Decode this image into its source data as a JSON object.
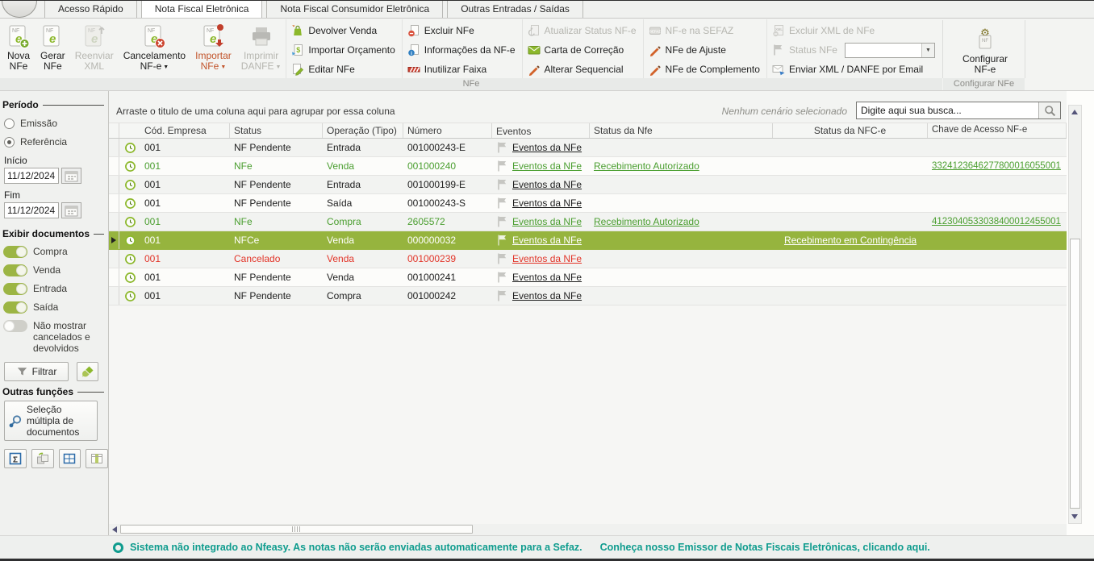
{
  "colors": {
    "selected_row_green": "#96b43e",
    "toggle_green": "#9cb544",
    "link_text_green": "#4a9e2f",
    "status_red": "#e23428",
    "orange_accent": "#c2552c",
    "teal": "#0f9c8e"
  },
  "tabs": [
    {
      "id": "acesso-rapido",
      "label": "Acesso Rápido",
      "active": false
    },
    {
      "id": "nota-fiscal-eletronica",
      "label": "Nota Fiscal Eletrônica",
      "active": true
    },
    {
      "id": "nota-fiscal-consumidor-eletronica",
      "label": "Nota Fiscal Consumidor Eletrônica",
      "active": false
    },
    {
      "id": "outras-entradas-saidas",
      "label": "Outras Entradas / Saídas",
      "active": false
    }
  ],
  "ribbon": {
    "group_nfe_label": "NFe",
    "group_config_label": "Configurar NFe",
    "big_buttons": [
      {
        "id": "nova-nfe",
        "lines": [
          "Nova",
          "NFe"
        ],
        "icon": "nf-new",
        "enabled": true,
        "dropdown": false,
        "accent": ""
      },
      {
        "id": "gerar-nfe",
        "lines": [
          "Gerar",
          "NFe"
        ],
        "icon": "nf-gen",
        "enabled": true,
        "dropdown": false,
        "accent": ""
      },
      {
        "id": "reenviar-xml",
        "lines": [
          "Reenviar",
          "XML"
        ],
        "icon": "nf-resend",
        "enabled": false,
        "dropdown": false,
        "accent": ""
      },
      {
        "id": "cancelamento-nfe",
        "lines": [
          "Cancelamento",
          "NF-e"
        ],
        "icon": "nf-cancel",
        "enabled": true,
        "dropdown": true,
        "accent": ""
      },
      {
        "id": "importar-nfe",
        "lines": [
          "Importar",
          "NFe"
        ],
        "icon": "nf-import",
        "enabled": true,
        "dropdown": true,
        "accent": "orange"
      },
      {
        "id": "imprimir-danfe",
        "lines": [
          "Imprimir",
          "DANFE"
        ],
        "icon": "printer",
        "enabled": false,
        "dropdown": true,
        "accent": ""
      }
    ],
    "small_button_columns": [
      [
        {
          "id": "devolver-venda",
          "label": "Devolver Venda",
          "icon": "bag-green",
          "enabled": true,
          "combo": false
        },
        {
          "id": "importar-orcamento",
          "label": "Importar Orçamento",
          "icon": "doc-dollar",
          "enabled": true,
          "combo": false
        },
        {
          "id": "editar-nfe",
          "label": "Editar NFe",
          "icon": "pencil-doc",
          "enabled": true,
          "combo": false
        }
      ],
      [
        {
          "id": "excluir-nfe",
          "label": "Excluir NFe",
          "icon": "doc-minus",
          "enabled": true,
          "combo": false
        },
        {
          "id": "informacoes-da-nfe",
          "label": "Informações da NF-e",
          "icon": "doc-info",
          "enabled": true,
          "combo": false
        },
        {
          "id": "inutilizar-faixa",
          "label": "Inutilizar Faixa",
          "icon": "barrier",
          "enabled": true,
          "combo": false
        }
      ],
      [
        {
          "id": "atualizar-status-nfe",
          "label": "Atualizar Status NF-e",
          "icon": "refresh-doc",
          "enabled": false,
          "combo": false
        },
        {
          "id": "carta-de-correcao",
          "label": "Carta de Correção",
          "icon": "envelope-green",
          "enabled": true,
          "combo": false
        },
        {
          "id": "alterar-sequencial",
          "label": "Alterar Sequencial",
          "icon": "pencil-orange",
          "enabled": true,
          "combo": false
        }
      ],
      [
        {
          "id": "nfe-na-sefaz",
          "label": "NF-e na SEFAZ",
          "icon": "sefaz",
          "enabled": false,
          "combo": false
        },
        {
          "id": "nfe-de-ajuste",
          "label": "NFe de Ajuste",
          "icon": "pencil-orange",
          "enabled": true,
          "combo": false
        },
        {
          "id": "nfe-de-complemento",
          "label": "NFe de Complemento",
          "icon": "pencil-orange",
          "enabled": true,
          "combo": false
        }
      ],
      [
        {
          "id": "excluir-xml-de-nfe",
          "label": "Excluir XML de NFe",
          "icon": "xml-minus",
          "enabled": false,
          "combo": false
        },
        {
          "id": "status-nfe",
          "label": "Status NFe",
          "icon": "flag-gray",
          "enabled": false,
          "combo": true
        },
        {
          "id": "enviar-xml-danfe-por-email",
          "label": "Enviar XML / DANFE por Email",
          "icon": "envelope-send",
          "enabled": true,
          "combo": false
        }
      ]
    ],
    "status_nfe_combo_value": "",
    "configurar_button": {
      "id": "configurar-nfe",
      "lines": [
        "Configurar",
        "NF-e"
      ],
      "icon": "nf-config"
    }
  },
  "sidebar": {
    "periodo": {
      "title": "Período",
      "options": [
        {
          "label": "Emissão",
          "selected": false
        },
        {
          "label": "Referência",
          "selected": true
        }
      ],
      "inicio_label": "Início",
      "inicio_value": "11/12/2024",
      "fim_label": "Fim",
      "fim_value": "11/12/2024"
    },
    "exibir": {
      "title": "Exibir documentos",
      "toggles": [
        {
          "id": "compra",
          "label": "Compra",
          "on": true
        },
        {
          "id": "venda",
          "label": "Venda",
          "on": true
        },
        {
          "id": "entrada",
          "label": "Entrada",
          "on": true
        },
        {
          "id": "saida",
          "label": "Saída",
          "on": true
        },
        {
          "id": "nao-mostrar-cancelados",
          "label": "Não mostrar cancelados e devolvidos",
          "on": false
        }
      ]
    },
    "filtrar_label": "Filtrar",
    "outras_funcoes_title": "Outras funções",
    "selecao_multipla_label": "Seleção múltipla de documentos",
    "tool_buttons": [
      {
        "id": "totalizador",
        "icon": "sum-grid"
      },
      {
        "id": "exportar-grade",
        "icon": "copy-grid"
      },
      {
        "id": "linhas-de-grade",
        "icon": "grid-lines"
      },
      {
        "id": "escolher-colunas",
        "icon": "column-chooser"
      }
    ]
  },
  "grid": {
    "group_hint": "Arraste o titulo de uma coluna aqui para agrupar por essa coluna",
    "scenario_text": "Nenhum cenário selecionado",
    "search_placeholder": "Digite aqui sua busca...",
    "columns": [
      "Cód. Empresa",
      "Status",
      "Operação (Tipo)",
      "Número",
      "Eventos",
      "Status da Nfe",
      "Status da NFC-e",
      "Chave de Acesso NF-e"
    ],
    "eventos_link_label": "Eventos da NFe",
    "rows": [
      {
        "empresa": "001",
        "status": "NF Pendente",
        "operacao": "Entrada",
        "numero": "001000243-E",
        "status_nfe": "",
        "status_nfce": "",
        "chave": "",
        "tone": "default",
        "selected": false
      },
      {
        "empresa": "001",
        "status": "NFe",
        "operacao": "Venda",
        "numero": "001000240",
        "status_nfe": "Recebimento Autorizado",
        "status_nfce": "",
        "chave": "3324123646277800016055001",
        "tone": "green",
        "selected": false
      },
      {
        "empresa": "001",
        "status": "NF Pendente",
        "operacao": "Entrada",
        "numero": "001000199-E",
        "status_nfe": "",
        "status_nfce": "",
        "chave": "",
        "tone": "default",
        "selected": false
      },
      {
        "empresa": "001",
        "status": "NF Pendente",
        "operacao": "Saída",
        "numero": "001000243-S",
        "status_nfe": "",
        "status_nfce": "",
        "chave": "",
        "tone": "default",
        "selected": false
      },
      {
        "empresa": "001",
        "status": "NFe",
        "operacao": "Compra",
        "numero": "2605572",
        "status_nfe": "Recebimento Autorizado",
        "status_nfce": "",
        "chave": "4123040533038400012455001",
        "tone": "green",
        "selected": false
      },
      {
        "empresa": "001",
        "status": "NFCe",
        "operacao": "Venda",
        "numero": "000000032",
        "status_nfe": "",
        "status_nfce": "Recebimento em Contingência",
        "chave": "",
        "tone": "selected",
        "selected": true
      },
      {
        "empresa": "001",
        "status": "Cancelado",
        "operacao": "Venda",
        "numero": "001000239",
        "status_nfe": "",
        "status_nfce": "",
        "chave": "",
        "tone": "red",
        "selected": false
      },
      {
        "empresa": "001",
        "status": "NF Pendente",
        "operacao": "Venda",
        "numero": "001000241",
        "status_nfe": "",
        "status_nfce": "",
        "chave": "",
        "tone": "default",
        "selected": false
      },
      {
        "empresa": "001",
        "status": "NF Pendente",
        "operacao": "Compra",
        "numero": "001000242",
        "status_nfe": "",
        "status_nfce": "",
        "chave": "",
        "tone": "default",
        "selected": false
      }
    ]
  },
  "footer": {
    "message": "Sistema não integrado ao Nfeasy. As notas não serão enviadas automaticamente para a Sefaz.",
    "link": "Conheça nosso Emissor de Notas Fiscais Eletrônicas, clicando aqui."
  }
}
